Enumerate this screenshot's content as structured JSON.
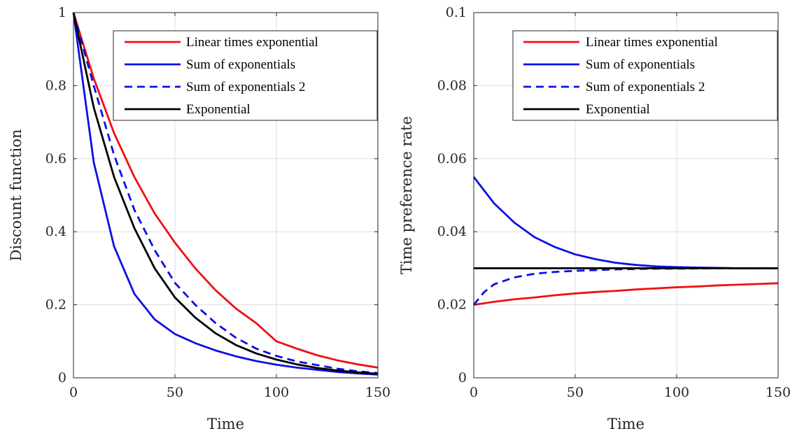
{
  "chart_data": [
    {
      "type": "line",
      "xlabel": "Time",
      "ylabel": "Discount function",
      "xlim": [
        0,
        150
      ],
      "ylim": [
        0,
        1
      ],
      "xticks": [
        0,
        50,
        100,
        150
      ],
      "yticks": [
        0,
        0.2,
        0.4,
        0.6,
        0.8,
        1
      ],
      "xtick_labels": [
        "0",
        "50",
        "100",
        "150"
      ],
      "ytick_labels": [
        "0",
        "0.2",
        "0.4",
        "0.6",
        "0.8",
        "1"
      ],
      "grid": true,
      "legend_position": "top-right",
      "series": [
        {
          "name": "Linear times exponential",
          "color": "#ee1111",
          "dash": "solid",
          "x": [
            0,
            10,
            20,
            30,
            40,
            50,
            60,
            70,
            80,
            90,
            100,
            110,
            120,
            130,
            140,
            150
          ],
          "y": [
            1,
            0.82,
            0.67,
            0.55,
            0.45,
            0.37,
            0.3,
            0.24,
            0.19,
            0.15,
            0.1,
            0.08,
            0.062,
            0.048,
            0.037,
            0.028
          ]
        },
        {
          "name": "Sum of exponentials",
          "color": "#0a10e6",
          "dash": "solid",
          "x": [
            0,
            10,
            20,
            30,
            40,
            50,
            60,
            70,
            80,
            90,
            100,
            110,
            120,
            130,
            140,
            150
          ],
          "y": [
            1,
            0.59,
            0.36,
            0.23,
            0.16,
            0.12,
            0.095,
            0.075,
            0.059,
            0.046,
            0.036,
            0.028,
            0.022,
            0.016,
            0.012,
            0.009
          ]
        },
        {
          "name": "Sum of exponentials 2",
          "color": "#0a10e6",
          "dash": "dashed",
          "x": [
            0,
            10,
            20,
            30,
            40,
            50,
            60,
            70,
            80,
            90,
            100,
            110,
            120,
            130,
            140,
            150
          ],
          "y": [
            1,
            0.8,
            0.61,
            0.46,
            0.35,
            0.26,
            0.2,
            0.15,
            0.11,
            0.08,
            0.06,
            0.045,
            0.035,
            0.025,
            0.018,
            0.013
          ]
        },
        {
          "name": "Exponential",
          "color": "#000000",
          "dash": "solid",
          "x": [
            0,
            10,
            20,
            30,
            40,
            50,
            60,
            70,
            80,
            90,
            100,
            110,
            120,
            130,
            140,
            150
          ],
          "y": [
            1,
            0.74,
            0.55,
            0.41,
            0.3,
            0.22,
            0.165,
            0.122,
            0.09,
            0.067,
            0.05,
            0.037,
            0.027,
            0.02,
            0.015,
            0.011
          ]
        }
      ]
    },
    {
      "type": "line",
      "xlabel": "Time",
      "ylabel": "Time preference rate",
      "xlim": [
        0,
        150
      ],
      "ylim": [
        0,
        0.1
      ],
      "xticks": [
        0,
        50,
        100,
        150
      ],
      "yticks": [
        0,
        0.02,
        0.04,
        0.06,
        0.08,
        0.1
      ],
      "xtick_labels": [
        "0",
        "50",
        "100",
        "150"
      ],
      "ytick_labels": [
        "0",
        "0.02",
        "0.04",
        "0.06",
        "0.08",
        "0.1"
      ],
      "grid": true,
      "legend_position": "top-right",
      "series": [
        {
          "name": "Linear times exponential",
          "color": "#ee1111",
          "dash": "solid",
          "x": [
            0,
            10,
            20,
            30,
            40,
            50,
            60,
            70,
            80,
            90,
            100,
            110,
            120,
            130,
            140,
            150
          ],
          "y": [
            0.02,
            0.0208,
            0.0215,
            0.022,
            0.0226,
            0.0231,
            0.0235,
            0.0238,
            0.0242,
            0.0245,
            0.0248,
            0.025,
            0.0253,
            0.0255,
            0.0257,
            0.0259
          ]
        },
        {
          "name": "Sum of exponentials",
          "color": "#0a10e6",
          "dash": "solid",
          "x": [
            0,
            10,
            20,
            30,
            40,
            50,
            60,
            70,
            80,
            90,
            100,
            110,
            120,
            130,
            140,
            150
          ],
          "y": [
            0.055,
            0.0478,
            0.0425,
            0.0385,
            0.0358,
            0.0338,
            0.0325,
            0.0315,
            0.0309,
            0.0305,
            0.0303,
            0.0302,
            0.0301,
            0.03,
            0.03,
            0.03
          ]
        },
        {
          "name": "Sum of exponentials 2",
          "color": "#0a10e6",
          "dash": "dashed",
          "x": [
            0,
            5,
            10,
            20,
            30,
            40,
            50,
            60,
            70,
            80,
            90,
            100,
            120,
            150
          ],
          "y": [
            0.02,
            0.0234,
            0.0256,
            0.0275,
            0.0285,
            0.029,
            0.0293,
            0.0295,
            0.0297,
            0.0298,
            0.0299,
            0.0299,
            0.03,
            0.03
          ]
        },
        {
          "name": "Exponential",
          "color": "#000000",
          "dash": "solid",
          "x": [
            0,
            150
          ],
          "y": [
            0.03,
            0.03
          ]
        }
      ]
    }
  ]
}
